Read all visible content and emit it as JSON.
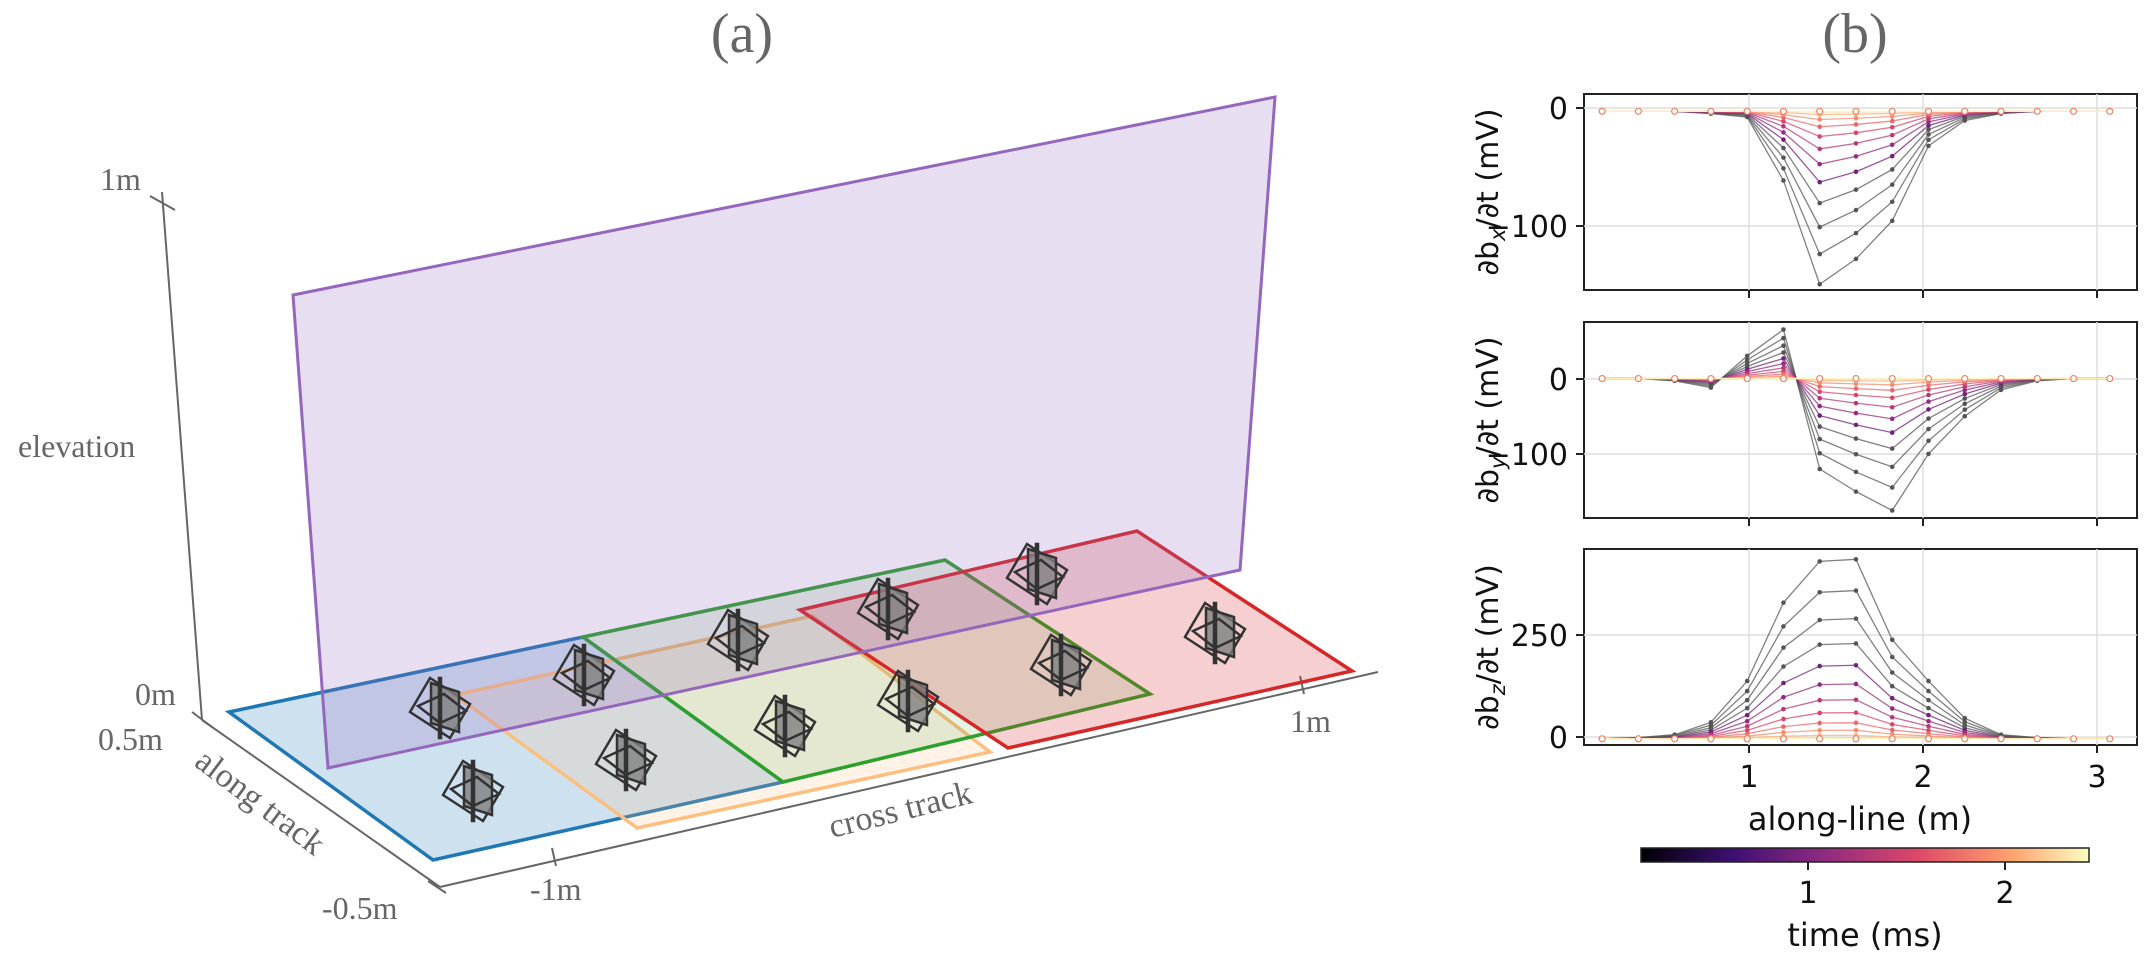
{
  "panel_a": {
    "label": "(a)",
    "axes": {
      "elevation": "elevation",
      "along_track": "along track",
      "cross_track": "cross track",
      "tick_1m_elev": "1m",
      "tick_0m": "0m",
      "tick_05m": "0.5m",
      "tick_neg05m": "-0.5m",
      "tick_neg1m": "-1m",
      "tick_1m_cross": "1m"
    },
    "colors": {
      "blue": "#1f77b4",
      "orange": "#fdbf80",
      "green": "#2ca02c",
      "red": "#d62728",
      "purple": "#9467bd",
      "sensor": "#7f7f7f"
    }
  },
  "panel_b": {
    "label": "(b)",
    "subplots": [
      {
        "ylabel_main": "∂b",
        "ylabel_sub": "x",
        "ylabel_tail": "/∂t (mV)",
        "ticks": [
          "0",
          "−100"
        ]
      },
      {
        "ylabel_main": "∂b",
        "ylabel_sub": "y",
        "ylabel_tail": "/∂t (mV)",
        "ticks": [
          "0",
          "−100"
        ]
      },
      {
        "ylabel_main": "∂b",
        "ylabel_sub": "z",
        "ylabel_tail": "/∂t (mV)",
        "ticks": [
          "250",
          "0"
        ]
      }
    ],
    "xlabel": "along-line (m)",
    "xticks": [
      "1",
      "2",
      "3"
    ],
    "colorbar": {
      "label": "time (ms)",
      "ticks": [
        "1",
        "2"
      ],
      "stops": [
        "#000004",
        "#3b0f70",
        "#8c2981",
        "#de4968",
        "#fe9f6d",
        "#fcfdbf"
      ]
    }
  },
  "chart_data": {
    "type": "line",
    "x_positions_m": [
      0.3,
      0.5,
      0.7,
      0.9,
      1.1,
      1.3,
      1.5,
      1.7,
      1.9,
      2.1,
      2.3,
      2.5,
      2.7,
      2.9,
      3.1
    ],
    "xlim": [
      0.2,
      3.25
    ],
    "xlabel": "along-line (m)",
    "colorbar_range_ms": [
      0.2,
      2.45
    ],
    "panels": [
      {
        "ylabel": "∂bx/∂t (mV)",
        "ylim": [
          -155,
          15
        ],
        "peak_curve": [
          0,
          0,
          0,
          -2,
          -5,
          -60,
          -150,
          -128,
          -95,
          -30,
          -8,
          -2,
          0,
          0,
          0
        ]
      },
      {
        "ylabel": "∂by/∂t (mV)",
        "ylim": [
          -185,
          75
        ],
        "peak_curve": [
          0,
          0,
          -3,
          -12,
          30,
          65,
          -120,
          -150,
          -175,
          -100,
          -50,
          -15,
          -3,
          0,
          0
        ]
      },
      {
        "ylabel": "∂bz/∂t (mV)",
        "ylim": [
          -15,
          460
        ],
        "peak_curve": [
          0,
          3,
          10,
          40,
          140,
          330,
          430,
          435,
          240,
          140,
          50,
          10,
          3,
          0,
          0
        ]
      }
    ]
  }
}
